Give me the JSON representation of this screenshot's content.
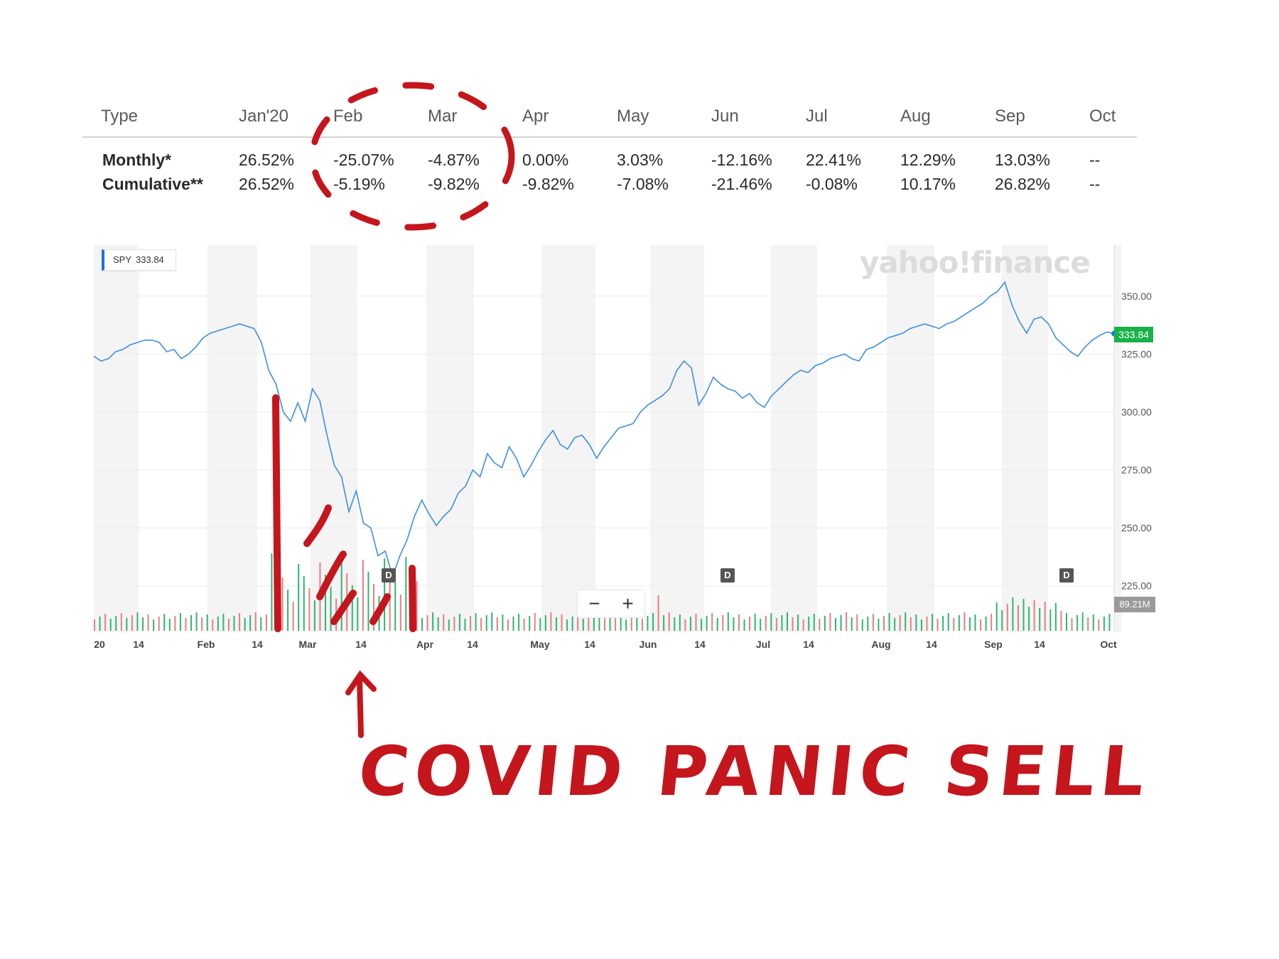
{
  "table": {
    "type_label": "Type",
    "months": [
      "Jan'20",
      "Feb",
      "Mar",
      "Apr",
      "May",
      "Jun",
      "Jul",
      "Aug",
      "Sep",
      "Oct"
    ],
    "rows": [
      {
        "label": "Monthly*",
        "values": [
          "26.52%",
          "-25.07%",
          "-4.87%",
          "0.00%",
          "3.03%",
          "-12.16%",
          "22.41%",
          "12.29%",
          "13.03%",
          "--"
        ]
      },
      {
        "label": "Cumulative**",
        "values": [
          "26.52%",
          "-5.19%",
          "-9.82%",
          "-9.82%",
          "-7.08%",
          "-21.46%",
          "-0.08%",
          "10.17%",
          "26.82%",
          "--"
        ]
      }
    ]
  },
  "chart": {
    "ticker": "SPY",
    "ticker_price": "333.84",
    "watermark": "yahoo!finance",
    "last_price_tag": "333.84",
    "volume_tag": "89.21M",
    "dividend_marker": "D",
    "zoom_out": "−",
    "zoom_in": "+",
    "colors": {
      "line": "#3d8fe0",
      "up_volume": "#2bb673",
      "down_volume": "#f07a80",
      "annotation": "#c4161c",
      "price_tag": "#18b14a"
    }
  },
  "annotation": {
    "text": "COVID PANIC SELL",
    "arrow": "up-arrow"
  },
  "chart_data": {
    "type": "line",
    "x_labels": [
      "20",
      "14",
      "Feb",
      "14",
      "Mar",
      "14",
      "Apr",
      "14",
      "May",
      "14",
      "Jun",
      "14",
      "Jul",
      "14",
      "Aug",
      "14",
      "Sep",
      "14",
      "Oct"
    ],
    "y_ticks": [
      "350.00",
      "325.00",
      "300.00",
      "275.00",
      "250.00",
      "225.00"
    ],
    "ylim": [
      205,
      372
    ],
    "series": [
      {
        "name": "SPY",
        "values": [
          324,
          322,
          323,
          326,
          327,
          329,
          330,
          331,
          331,
          330,
          326,
          327,
          323,
          325,
          328,
          332,
          334,
          335,
          336,
          337,
          338,
          337,
          336,
          330,
          318,
          312,
          300,
          296,
          304,
          296,
          310,
          305,
          290,
          277,
          272,
          257,
          266,
          252,
          250,
          238,
          240,
          229,
          238,
          245,
          255,
          262,
          256,
          251,
          255,
          258,
          265,
          268,
          275,
          272,
          282,
          278,
          276,
          285,
          280,
          272,
          277,
          283,
          288,
          292,
          286,
          284,
          289,
          290,
          286,
          280,
          285,
          289,
          293,
          294,
          295,
          300,
          303,
          305,
          307,
          310,
          318,
          322,
          319,
          303,
          308,
          315,
          312,
          310,
          309,
          306,
          308,
          304,
          302,
          307,
          310,
          313,
          316,
          318,
          317,
          320,
          321,
          323,
          324,
          325,
          323,
          322,
          327,
          328,
          330,
          332,
          333,
          334,
          336,
          337,
          338,
          337,
          336,
          338,
          339,
          341,
          343,
          345,
          347,
          350,
          352,
          356,
          346,
          339,
          334,
          340,
          341,
          338,
          332,
          329,
          326,
          324,
          328,
          331,
          333,
          334.5,
          333.84
        ]
      }
    ],
    "volume": {
      "tag": "89.21M"
    }
  }
}
